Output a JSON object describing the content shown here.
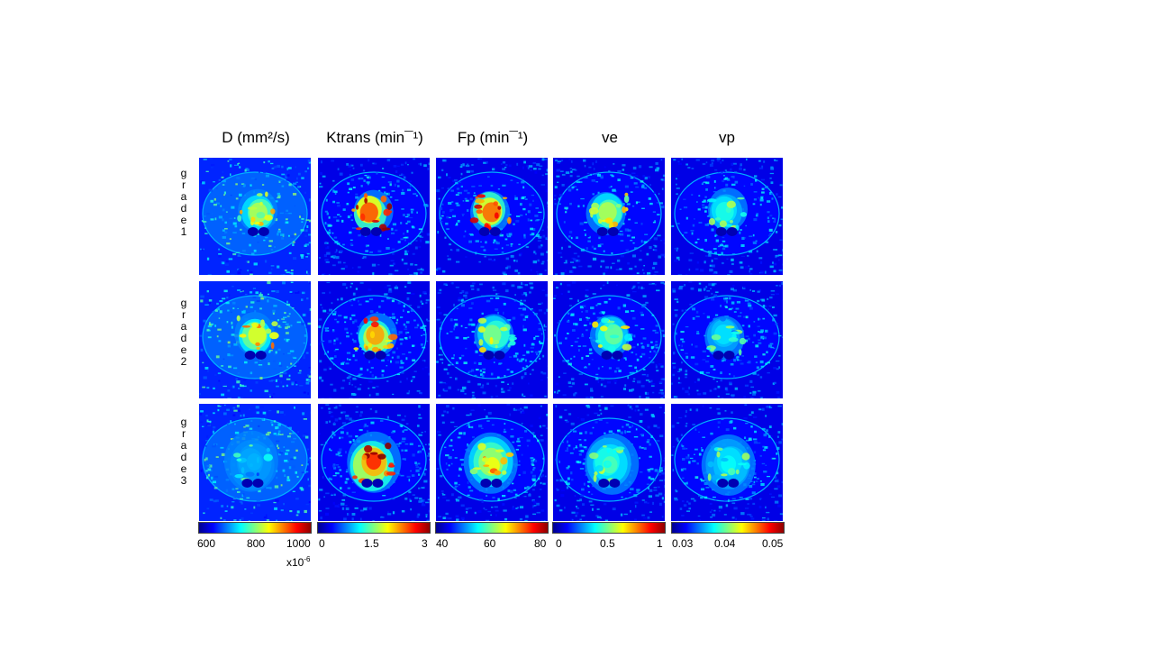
{
  "columns": [
    {
      "title": "D (mm²/s)"
    },
    {
      "title": "Ktrans (min¯¹)"
    },
    {
      "title": "Fp (min¯¹)"
    },
    {
      "title": "ve"
    },
    {
      "title": "vp"
    }
  ],
  "rows": [
    {
      "label": "g\nr\na\nd\ne\n1"
    },
    {
      "label": "g\nr\na\nd\ne\n2"
    },
    {
      "label": "g\nr\na\nd\ne\n3"
    }
  ],
  "colorbars": [
    {
      "ticks": [
        "600",
        "800",
        "1000"
      ],
      "exponent_base": "x10",
      "exponent_power": "-6"
    },
    {
      "ticks": [
        "0",
        "1.5",
        "3"
      ]
    },
    {
      "ticks": [
        "40",
        "60",
        "80"
      ]
    },
    {
      "ticks": [
        "0",
        "0.5",
        "1"
      ]
    },
    {
      "ticks": [
        "0.03",
        "0.04",
        "0.05"
      ]
    }
  ],
  "colormap": "jet",
  "colors": {
    "background": "#ffffff",
    "map_low": "#00008f",
    "map_mid_low": "#0070ff",
    "map_mid": "#40ffbf",
    "map_mid_high": "#ffd000",
    "map_high": "#8f0000"
  }
}
